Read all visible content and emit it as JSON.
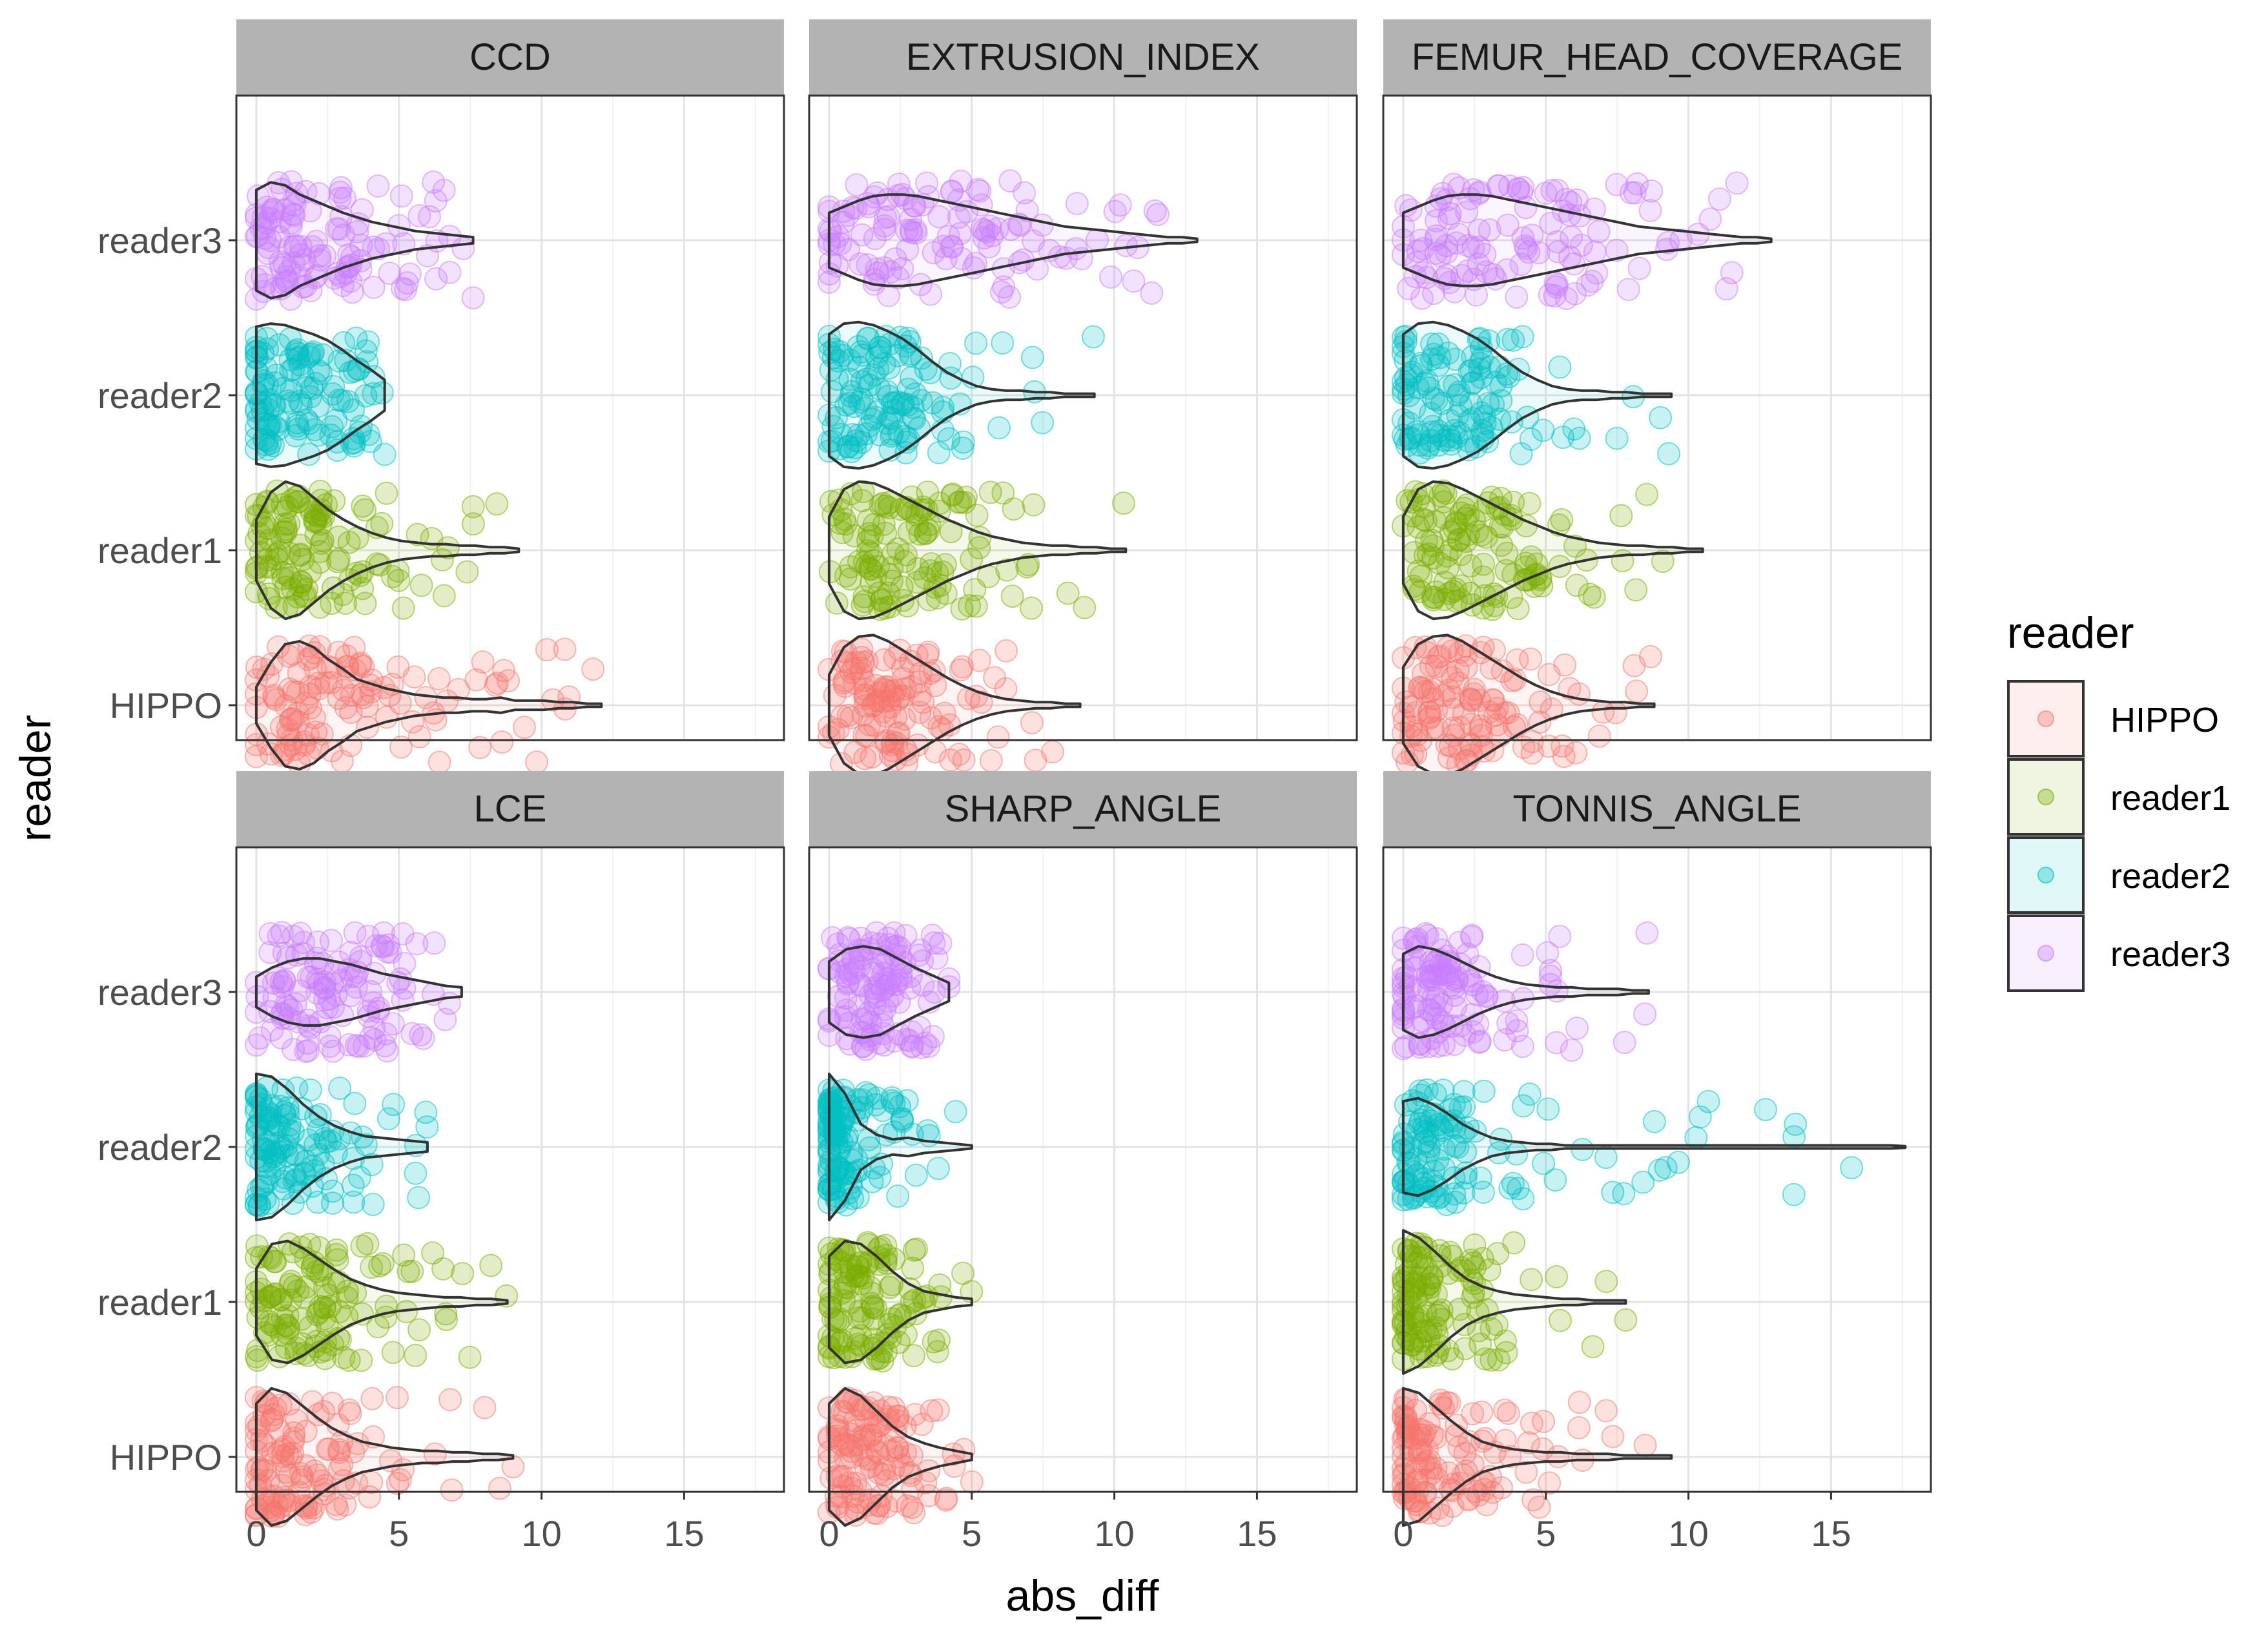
{
  "chart_data": {
    "type": "violin",
    "xlabel": "abs_diff",
    "ylabel": "reader",
    "xlim": [
      -0.7,
      18.5
    ],
    "x_ticks": [
      0,
      5,
      10,
      15
    ],
    "x_tick_labels": [
      "0",
      "5",
      "10",
      "15"
    ],
    "readers": [
      "HIPPO",
      "reader1",
      "reader2",
      "reader3"
    ],
    "legend": {
      "title": "reader",
      "position": "right",
      "entries": [
        {
          "label": "HIPPO",
          "color": "#F8766D"
        },
        {
          "label": "reader1",
          "color": "#7CAE00"
        },
        {
          "label": "reader2",
          "color": "#00BFC4"
        },
        {
          "label": "reader3",
          "color": "#C77CFF"
        }
      ]
    },
    "panels": [
      {
        "title": "CCD",
        "violins": [
          {
            "reader": "HIPPO",
            "max": 12.1,
            "width": [
              0.12,
              0.28,
              0.4,
              0.42,
              0.38,
              0.3,
              0.24,
              0.17,
              0.14,
              0.11,
              0.09,
              0.07,
              0.06,
              0.05,
              0.05,
              0.04,
              0.04,
              0.05,
              0.03,
              0.03,
              0.03,
              0.02,
              0.02,
              0.01,
              0.01
            ]
          },
          {
            "reader": "reader1",
            "max": 9.2,
            "width": [
              0.2,
              0.38,
              0.45,
              0.42,
              0.34,
              0.26,
              0.2,
              0.15,
              0.11,
              0.08,
              0.06,
              0.05,
              0.04,
              0.04,
              0.03,
              0.03,
              0.02,
              0.02,
              0.01
            ]
          },
          {
            "reader": "reader2",
            "max": 4.5,
            "width": [
              0.45,
              0.47,
              0.46,
              0.43,
              0.4,
              0.36,
              0.3,
              0.23,
              0.17,
              0.1
            ]
          },
          {
            "reader": "reader3",
            "max": 7.6,
            "width": [
              0.33,
              0.38,
              0.36,
              0.3,
              0.26,
              0.22,
              0.18,
              0.15,
              0.12,
              0.1,
              0.08,
              0.06,
              0.05,
              0.04,
              0.03,
              0.02
            ]
          }
        ]
      },
      {
        "title": "EXTRUSION_INDEX",
        "violins": [
          {
            "reader": "HIPPO",
            "max": 8.8,
            "width": [
              0.2,
              0.38,
              0.45,
              0.46,
              0.42,
              0.36,
              0.3,
              0.24,
              0.18,
              0.13,
              0.09,
              0.06,
              0.04,
              0.03,
              0.02,
              0.02,
              0.01,
              0.01
            ]
          },
          {
            "reader": "reader1",
            "max": 10.4,
            "width": [
              0.22,
              0.4,
              0.45,
              0.44,
              0.4,
              0.35,
              0.3,
              0.25,
              0.2,
              0.16,
              0.12,
              0.09,
              0.07,
              0.05,
              0.04,
              0.03,
              0.03,
              0.02,
              0.02,
              0.01,
              0.01
            ]
          },
          {
            "reader": "reader2",
            "max": 9.3,
            "width": [
              0.4,
              0.47,
              0.48,
              0.46,
              0.42,
              0.37,
              0.3,
              0.22,
              0.15,
              0.1,
              0.06,
              0.04,
              0.03,
              0.03,
              0.02,
              0.02,
              0.01,
              0.01,
              0.01
            ]
          },
          {
            "reader": "reader3",
            "max": 12.9,
            "width": [
              0.18,
              0.22,
              0.26,
              0.29,
              0.3,
              0.3,
              0.29,
              0.27,
              0.25,
              0.23,
              0.21,
              0.19,
              0.17,
              0.15,
              0.13,
              0.11,
              0.09,
              0.08,
              0.07,
              0.06,
              0.05,
              0.04,
              0.03,
              0.02,
              0.02,
              0.01
            ]
          }
        ]
      },
      {
        "title": "FEMUR_HEAD_COVERAGE",
        "violins": [
          {
            "reader": "HIPPO",
            "max": 8.8,
            "width": [
              0.25,
              0.4,
              0.45,
              0.46,
              0.42,
              0.36,
              0.3,
              0.24,
              0.18,
              0.13,
              0.09,
              0.06,
              0.04,
              0.03,
              0.02,
              0.02,
              0.01,
              0.01
            ]
          },
          {
            "reader": "reader1",
            "max": 10.5,
            "width": [
              0.22,
              0.4,
              0.45,
              0.44,
              0.4,
              0.35,
              0.3,
              0.25,
              0.2,
              0.16,
              0.12,
              0.09,
              0.07,
              0.05,
              0.04,
              0.03,
              0.03,
              0.02,
              0.02,
              0.01,
              0.01
            ]
          },
          {
            "reader": "reader2",
            "max": 9.4,
            "width": [
              0.4,
              0.47,
              0.48,
              0.46,
              0.42,
              0.37,
              0.3,
              0.22,
              0.15,
              0.1,
              0.06,
              0.04,
              0.03,
              0.03,
              0.02,
              0.02,
              0.01,
              0.01,
              0.01
            ]
          },
          {
            "reader": "reader3",
            "max": 12.9,
            "width": [
              0.18,
              0.22,
              0.26,
              0.29,
              0.3,
              0.3,
              0.29,
              0.27,
              0.25,
              0.23,
              0.21,
              0.19,
              0.17,
              0.15,
              0.13,
              0.11,
              0.09,
              0.08,
              0.07,
              0.06,
              0.05,
              0.04,
              0.03,
              0.02,
              0.02,
              0.01
            ]
          }
        ]
      },
      {
        "title": "LCE",
        "violins": [
          {
            "reader": "HIPPO",
            "max": 9.0,
            "width": [
              0.35,
              0.45,
              0.42,
              0.34,
              0.26,
              0.19,
              0.14,
              0.1,
              0.08,
              0.06,
              0.05,
              0.04,
              0.04,
              0.03,
              0.03,
              0.02,
              0.02,
              0.01
            ]
          },
          {
            "reader": "reader1",
            "max": 8.8,
            "width": [
              0.22,
              0.38,
              0.4,
              0.35,
              0.28,
              0.21,
              0.15,
              0.11,
              0.08,
              0.06,
              0.05,
              0.04,
              0.03,
              0.03,
              0.02,
              0.02,
              0.01
            ]
          },
          {
            "reader": "reader2",
            "max": 6.0,
            "width": [
              0.48,
              0.46,
              0.38,
              0.28,
              0.2,
              0.14,
              0.1,
              0.07,
              0.06,
              0.05,
              0.04,
              0.03
            ]
          },
          {
            "reader": "reader3",
            "max": 7.2,
            "width": [
              0.1,
              0.16,
              0.2,
              0.22,
              0.22,
              0.2,
              0.18,
              0.15,
              0.12,
              0.1,
              0.08,
              0.06,
              0.04,
              0.03
            ]
          }
        ]
      },
      {
        "title": "SHARP_ANGLE",
        "violins": [
          {
            "reader": "HIPPO",
            "max": 5.0,
            "width": [
              0.35,
              0.45,
              0.4,
              0.3,
              0.2,
              0.13,
              0.09,
              0.06,
              0.04,
              0.02
            ]
          },
          {
            "reader": "reader1",
            "max": 5.0,
            "width": [
              0.3,
              0.4,
              0.38,
              0.3,
              0.2,
              0.12,
              0.07,
              0.05,
              0.03,
              0.02
            ]
          },
          {
            "reader": "reader2",
            "max": 5.0,
            "width": [
              0.48,
              0.35,
              0.15,
              0.08,
              0.05,
              0.06,
              0.04,
              0.03,
              0.02,
              0.01
            ]
          },
          {
            "reader": "reader3",
            "max": 4.2,
            "width": [
              0.2,
              0.28,
              0.3,
              0.28,
              0.22,
              0.16,
              0.11,
              0.06
            ]
          }
        ]
      },
      {
        "title": "TONNIS_ANGLE",
        "violins": [
          {
            "reader": "HIPPO",
            "max": 9.4,
            "width": [
              0.45,
              0.42,
              0.33,
              0.24,
              0.16,
              0.1,
              0.07,
              0.05,
              0.04,
              0.03,
              0.03,
              0.02,
              0.02,
              0.02,
              0.01,
              0.01,
              0.01,
              0.01
            ]
          },
          {
            "reader": "reader1",
            "max": 7.8,
            "width": [
              0.47,
              0.42,
              0.33,
              0.23,
              0.15,
              0.1,
              0.07,
              0.05,
              0.04,
              0.03,
              0.02,
              0.02,
              0.01,
              0.01,
              0.01
            ]
          },
          {
            "reader": "reader2",
            "max": 17.6,
            "width": [
              0.3,
              0.32,
              0.28,
              0.22,
              0.15,
              0.1,
              0.06,
              0.04,
              0.03,
              0.02,
              0.02,
              0.01,
              0.01,
              0.01,
              0.01,
              0.01,
              0.01,
              0.01,
              0.01,
              0.01,
              0.01,
              0.01,
              0.01,
              0.01,
              0.01,
              0.01,
              0.01,
              0.01,
              0.01,
              0.01,
              0.01,
              0.01,
              0.01,
              0.01,
              0.005
            ]
          },
          {
            "reader": "reader3",
            "max": 8.6,
            "width": [
              0.25,
              0.3,
              0.28,
              0.24,
              0.19,
              0.14,
              0.1,
              0.07,
              0.05,
              0.04,
              0.03,
              0.03,
              0.02,
              0.02,
              0.02,
              0.01,
              0.01
            ]
          }
        ]
      }
    ]
  }
}
